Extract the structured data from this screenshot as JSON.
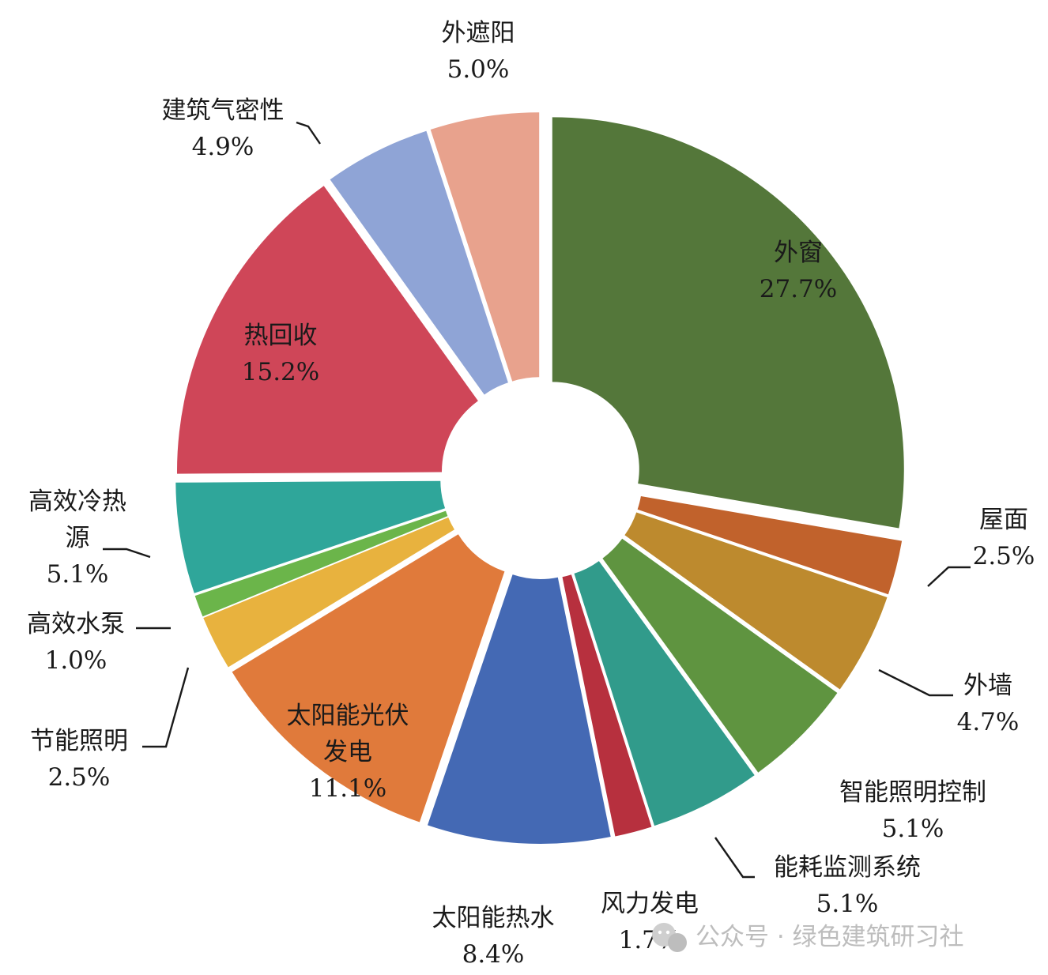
{
  "chart_data": {
    "type": "pie",
    "exploded": true,
    "start_angle_deg": 0,
    "direction": "clockwise",
    "slices": [
      {
        "name": "外窗",
        "value": 27.7,
        "value_label": "27.7%",
        "label_lines": [
          "外窗"
        ],
        "color": "#54773a",
        "label_inside": true
      },
      {
        "name": "屋面",
        "value": 2.5,
        "value_label": "2.5%",
        "label_lines": [
          "屋面"
        ],
        "color": "#c1622c",
        "label_inside": false
      },
      {
        "name": "外墙",
        "value": 4.7,
        "value_label": "4.7%",
        "label_lines": [
          "外墙"
        ],
        "color": "#bd8a2e",
        "label_inside": false
      },
      {
        "name": "智能照明控制",
        "value": 5.1,
        "value_label": "5.1%",
        "label_lines": [
          "智能照明控制"
        ],
        "color": "#5f9440",
        "label_inside": false
      },
      {
        "name": "能耗监测系统",
        "value": 5.1,
        "value_label": "5.1%",
        "label_lines": [
          "能耗监测系统"
        ],
        "color": "#319b8b",
        "label_inside": false
      },
      {
        "name": "风力发电",
        "value": 1.7,
        "value_label": "1.7%",
        "label_lines": [
          "风力发电"
        ],
        "color": "#b7303e",
        "label_inside": false
      },
      {
        "name": "太阳能热水",
        "value": 8.4,
        "value_label": "8.4%",
        "label_lines": [
          "太阳能热水"
        ],
        "color": "#4469b4",
        "label_inside": false
      },
      {
        "name": "太阳能光伏发电",
        "value": 11.1,
        "value_label": "11.1%",
        "label_lines": [
          "太阳能光伏",
          "发电"
        ],
        "color": "#e07a3b",
        "label_inside": true
      },
      {
        "name": "节能照明",
        "value": 2.5,
        "value_label": "2.5%",
        "label_lines": [
          "节能照明"
        ],
        "color": "#e8b23e",
        "label_inside": false
      },
      {
        "name": "高效水泵",
        "value": 1.0,
        "value_label": "1.0%",
        "label_lines": [
          "高效水泵"
        ],
        "color": "#6bb54a",
        "label_inside": false
      },
      {
        "name": "高效冷热源",
        "value": 5.1,
        "value_label": "5.1%",
        "label_lines": [
          "高效冷热",
          "源"
        ],
        "color": "#2fa69a",
        "label_inside": false
      },
      {
        "name": "热回收",
        "value": 15.2,
        "value_label": "15.2%",
        "label_lines": [
          "热回收"
        ],
        "color": "#cf4658",
        "label_inside": true
      },
      {
        "name": "建筑气密性",
        "value": 4.9,
        "value_label": "4.9%",
        "label_lines": [
          "建筑气密性"
        ],
        "color": "#8fa4d6",
        "label_inside": false
      },
      {
        "name": "外遮阳",
        "value": 5.0,
        "value_label": "5.0%",
        "label_lines": [
          "外遮阳"
        ],
        "color": "#e8a28d",
        "label_inside": false
      }
    ]
  },
  "watermark": {
    "text": "公众号 · 绿色建筑研习社",
    "icon": "wechat-icon"
  }
}
